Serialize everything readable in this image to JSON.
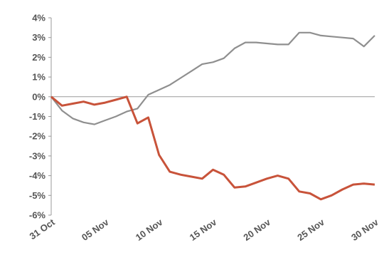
{
  "chart_data": {
    "type": "line",
    "title": "",
    "xlabel": "",
    "ylabel": "",
    "x": [
      "31 Oct",
      "01 Nov",
      "02 Nov",
      "03 Nov",
      "04 Nov",
      "05 Nov",
      "06 Nov",
      "07 Nov",
      "08 Nov",
      "09 Nov",
      "10 Nov",
      "11 Nov",
      "12 Nov",
      "13 Nov",
      "14 Nov",
      "15 Nov",
      "16 Nov",
      "17 Nov",
      "18 Nov",
      "19 Nov",
      "20 Nov",
      "21 Nov",
      "22 Nov",
      "23 Nov",
      "24 Nov",
      "25 Nov",
      "26 Nov",
      "27 Nov",
      "28 Nov",
      "29 Nov",
      "30 Nov"
    ],
    "x_tick_labels": [
      "31 Oct",
      "05 Nov",
      "10 Nov",
      "15 Nov",
      "20 Nov",
      "25 Nov",
      "30 Nov"
    ],
    "x_tick_indices": [
      0,
      5,
      10,
      15,
      20,
      25,
      30
    ],
    "ylim": [
      -6,
      4
    ],
    "y_ticks": [
      4,
      3,
      2,
      1,
      0,
      -1,
      -2,
      -3,
      -4,
      -5,
      -6
    ],
    "y_tick_labels": [
      "4%",
      "3%",
      "2%",
      "1%",
      "0%",
      "-1%",
      "-2%",
      "-3%",
      "-4%",
      "-5%",
      "-6%"
    ],
    "grid": false,
    "series": [
      {
        "color": "#8f8f8f",
        "values": [
          0,
          -0.7,
          -1.1,
          -1.3,
          -1.4,
          -1.2,
          -1.0,
          -0.75,
          -0.6,
          0.1,
          0.35,
          0.6,
          0.95,
          1.3,
          1.65,
          1.75,
          1.95,
          2.45,
          2.75,
          2.75,
          2.7,
          2.65,
          2.65,
          3.25,
          3.25,
          3.1,
          3.05,
          3.0,
          2.95,
          2.55,
          3.1
        ]
      },
      {
        "color": "#c8533a",
        "values": [
          0,
          -0.45,
          -0.35,
          -0.25,
          -0.4,
          -0.3,
          -0.15,
          0,
          -1.35,
          -1.05,
          -2.95,
          -3.8,
          -3.95,
          -4.05,
          -4.15,
          -3.7,
          -3.95,
          -4.6,
          -4.55,
          -4.35,
          -4.15,
          -4.0,
          -4.15,
          -4.8,
          -4.9,
          -5.2,
          -5.0,
          -4.7,
          -4.45,
          -4.4,
          -4.45
        ]
      }
    ]
  }
}
